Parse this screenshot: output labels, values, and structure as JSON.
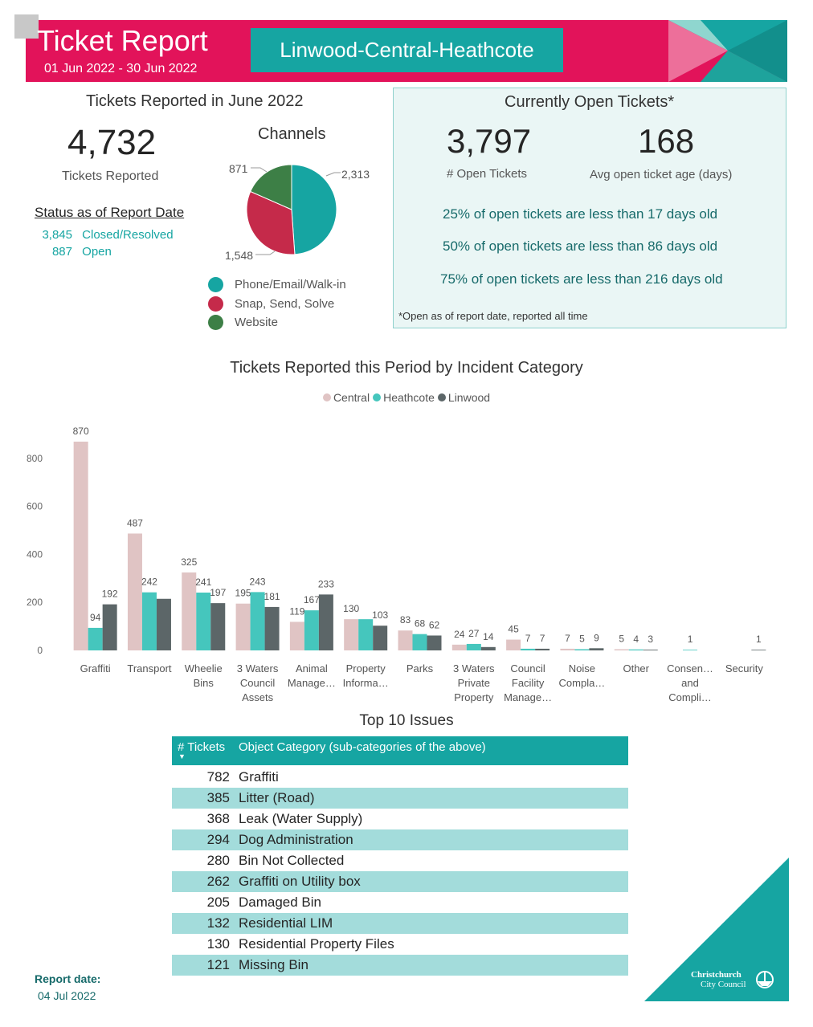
{
  "header": {
    "title": "Ticket Report",
    "date_range": "01 Jun 2022 - 30 Jun 2022",
    "area": "Linwood-Central-Heathcote",
    "colors": {
      "primary": "#e2135a",
      "accent": "#16a5a2"
    }
  },
  "reported": {
    "title": "Tickets Reported in June 2022",
    "count": "4,732",
    "count_label": "Tickets Reported",
    "status_title": "Status as of Report Date",
    "status": [
      {
        "value": "3,845",
        "label": "Closed/Resolved"
      },
      {
        "value": "887",
        "label": "Open"
      }
    ]
  },
  "channels": {
    "title": "Channels",
    "slices": [
      {
        "name": "Phone/Email/Walk-in",
        "value": 2313,
        "label": "2,313",
        "color": "#16a5a2"
      },
      {
        "name": "Snap, Send, Solve",
        "value": 1548,
        "label": "1,548",
        "color": "#c52a4a"
      },
      {
        "name": "Website",
        "value": 871,
        "label": "871",
        "color": "#3d7f46"
      }
    ]
  },
  "open_tickets": {
    "title": "Currently Open Tickets*",
    "count": "3,797",
    "count_label": "# Open Tickets",
    "avg_age": "168",
    "avg_age_label": "Avg open ticket age (days)",
    "percentiles": [
      "25% of open tickets are less than 17 days old",
      "50% of open tickets are less than 86 days old",
      "75% of open tickets are less than 216 days old"
    ],
    "note": "*Open as of report date, reported all time"
  },
  "chart_data": {
    "type": "bar",
    "title": "Tickets Reported this Period by Incident Category",
    "categories": [
      [
        "Graffiti"
      ],
      [
        "Transport"
      ],
      [
        "Wheelie",
        "Bins"
      ],
      [
        "3 Waters",
        "Council",
        "Assets"
      ],
      [
        "Animal",
        "Manage…"
      ],
      [
        "Property",
        "Informa…"
      ],
      [
        "Parks"
      ],
      [
        "3 Waters",
        "Private",
        "Property"
      ],
      [
        "Council",
        "Facility",
        "Manage…"
      ],
      [
        "Noise",
        "Compla…"
      ],
      [
        "Other"
      ],
      [
        "Consen…",
        "and",
        "Compli…"
      ],
      [
        "Security"
      ]
    ],
    "series": [
      {
        "name": "Central",
        "color": "#e0c4c4",
        "values": [
          870,
          487,
          325,
          195,
          119,
          130,
          83,
          24,
          45,
          7,
          5,
          null,
          null
        ]
      },
      {
        "name": "Heathcote",
        "color": "#45c6bd",
        "values": [
          94,
          242,
          241,
          243,
          167,
          130,
          68,
          27,
          7,
          5,
          4,
          1,
          null
        ]
      },
      {
        "name": "Linwood",
        "color": "#5c6668",
        "values": [
          192,
          215,
          197,
          181,
          233,
          103,
          62,
          14,
          7,
          9,
          3,
          null,
          1
        ]
      }
    ],
    "data_labels": [
      [
        "870",
        "94",
        "192"
      ],
      [
        "487",
        "242",
        ""
      ],
      [
        "325",
        "241",
        "197"
      ],
      [
        "195",
        "243",
        "181"
      ],
      [
        "119",
        "167",
        "233"
      ],
      [
        "130",
        "",
        "103"
      ],
      [
        "83",
        "68",
        "62"
      ],
      [
        "24",
        "27",
        "14"
      ],
      [
        "45",
        "7",
        "7"
      ],
      [
        "7",
        "5",
        "9"
      ],
      [
        "5",
        "4",
        "3"
      ],
      [
        "",
        "1",
        ""
      ],
      [
        "",
        "",
        "1"
      ]
    ],
    "yticks": [
      0,
      200,
      400,
      600,
      800
    ],
    "ylim": [
      0,
      870
    ],
    "legend_position": "top-center",
    "grid": false
  },
  "top10": {
    "title": "Top 10 Issues",
    "col_count": "# Tickets",
    "col_category": "Object Category (sub-categories of the above)",
    "rows": [
      {
        "count": "782",
        "category": "Graffiti"
      },
      {
        "count": "385",
        "category": "Litter (Road)"
      },
      {
        "count": "368",
        "category": "Leak (Water Supply)"
      },
      {
        "count": "294",
        "category": "Dog Administration"
      },
      {
        "count": "280",
        "category": "Bin Not Collected"
      },
      {
        "count": "262",
        "category": "Graffiti on Utility box"
      },
      {
        "count": "205",
        "category": "Damaged Bin"
      },
      {
        "count": "132",
        "category": "Residential LIM"
      },
      {
        "count": "130",
        "category": "Residential Property Files"
      },
      {
        "count": "121",
        "category": "Missing Bin"
      }
    ]
  },
  "footer": {
    "report_date_label": "Report date:",
    "report_date": "04 Jul 2022",
    "brand_line1": "Christchurch",
    "brand_line2": "City Council"
  }
}
